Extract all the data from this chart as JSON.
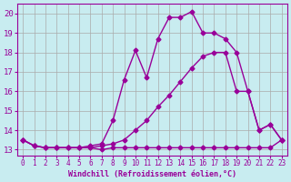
{
  "xlabel": "Windchill (Refroidissement éolien,°C)",
  "background_color": "#c8ecf0",
  "line_color": "#990099",
  "xlim_min": -0.5,
  "xlim_max": 23.5,
  "ylim_min": 12.7,
  "ylim_max": 20.5,
  "xticks": [
    0,
    1,
    2,
    3,
    4,
    5,
    6,
    7,
    8,
    9,
    10,
    11,
    12,
    13,
    14,
    15,
    16,
    17,
    18,
    19,
    20,
    21,
    22,
    23
  ],
  "yticks": [
    13,
    14,
    15,
    16,
    17,
    18,
    19,
    20
  ],
  "grid_color": "#aaaaaa",
  "line1_x": [
    0,
    1,
    2,
    3,
    4,
    5,
    6,
    7,
    8,
    9,
    10,
    11,
    12,
    13,
    14,
    15,
    16,
    17,
    18,
    19,
    20,
    21,
    22,
    23
  ],
  "line1_y": [
    13.5,
    13.2,
    13.1,
    13.1,
    13.1,
    13.1,
    13.1,
    13.0,
    13.1,
    13.1,
    13.1,
    13.1,
    13.1,
    13.1,
    13.1,
    13.1,
    13.1,
    13.1,
    13.1,
    13.1,
    13.1,
    13.1,
    13.1,
    13.5
  ],
  "line2_x": [
    0,
    1,
    2,
    3,
    4,
    5,
    6,
    7,
    8,
    9,
    10,
    11,
    12,
    13,
    14,
    15,
    16,
    17,
    18,
    19,
    20,
    21,
    22,
    23
  ],
  "line2_y": [
    13.5,
    13.2,
    13.1,
    13.1,
    13.1,
    13.1,
    13.1,
    13.2,
    13.3,
    13.5,
    14.0,
    14.5,
    15.2,
    15.8,
    16.5,
    17.2,
    17.8,
    18.0,
    18.0,
    16.0,
    16.0,
    14.0,
    14.3,
    13.5
  ],
  "line3_x": [
    0,
    1,
    2,
    3,
    4,
    5,
    6,
    7,
    8,
    9,
    10,
    11,
    12,
    13,
    14,
    15,
    16,
    17,
    18,
    19,
    20,
    21,
    22,
    23
  ],
  "line3_y": [
    13.5,
    13.2,
    13.1,
    13.1,
    13.1,
    13.1,
    13.2,
    13.3,
    14.5,
    16.6,
    18.1,
    16.7,
    18.7,
    19.8,
    19.8,
    20.1,
    19.0,
    19.0,
    18.7,
    18.0,
    16.0,
    14.0,
    14.3,
    13.5
  ],
  "marker": "D",
  "markersize": 2.5,
  "linewidth": 1.0,
  "xlabel_fontsize": 6.0,
  "ytick_fontsize": 6.5,
  "xtick_fontsize": 5.5
}
